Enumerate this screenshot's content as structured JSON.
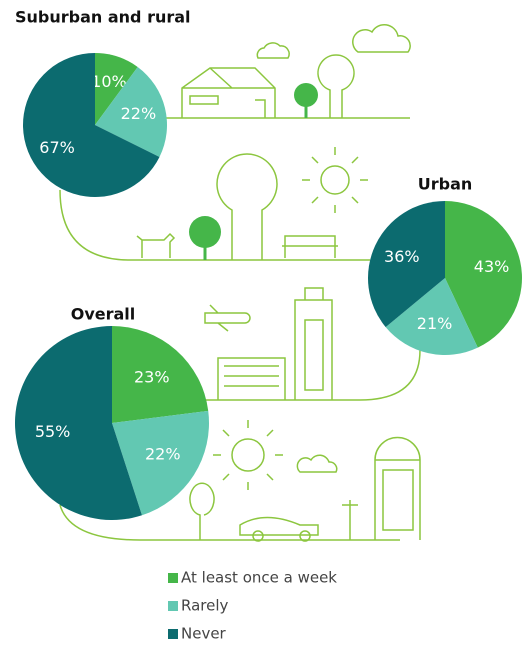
{
  "chart_data": [
    {
      "type": "pie",
      "title": "Suburban and rural",
      "categories": [
        "At least once a week",
        "Rarely",
        "Never"
      ],
      "values": [
        10,
        22,
        67
      ],
      "value_labels": [
        "10%",
        "22%",
        "67%"
      ],
      "colors": [
        "#45b649",
        "#62c8b2",
        "#0c6b6f"
      ]
    },
    {
      "type": "pie",
      "title": "Urban",
      "categories": [
        "At least once a week",
        "Rarely",
        "Never"
      ],
      "values": [
        43,
        21,
        36
      ],
      "value_labels": [
        "43%",
        "21%",
        "36%"
      ],
      "colors": [
        "#45b649",
        "#62c8b2",
        "#0c6b6f"
      ]
    },
    {
      "type": "pie",
      "title": "Overall",
      "categories": [
        "At least once a week",
        "Rarely",
        "Never"
      ],
      "values": [
        23,
        22,
        55
      ],
      "value_labels": [
        "23%",
        "22%",
        "55%"
      ],
      "colors": [
        "#45b649",
        "#62c8b2",
        "#0c6b6f"
      ]
    }
  ]
}
